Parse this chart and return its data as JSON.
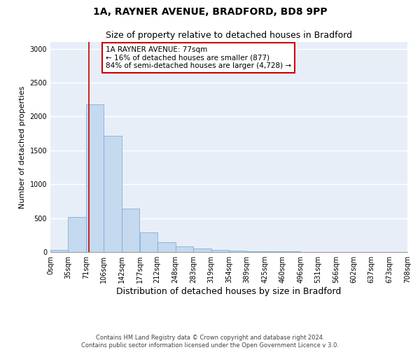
{
  "title_line1": "1A, RAYNER AVENUE, BRADFORD, BD8 9PP",
  "title_line2": "Size of property relative to detached houses in Bradford",
  "xlabel": "Distribution of detached houses by size in Bradford",
  "ylabel": "Number of detached properties",
  "bin_edges": [
    0,
    35,
    71,
    106,
    142,
    177,
    212,
    248,
    283,
    319,
    354,
    389,
    425,
    460,
    496,
    531,
    566,
    602,
    637,
    673,
    708
  ],
  "counts": [
    30,
    520,
    2180,
    1720,
    640,
    290,
    145,
    85,
    55,
    35,
    20,
    15,
    10,
    10,
    5,
    3,
    2,
    2,
    1,
    1
  ],
  "bar_color": "#c5d9ef",
  "bar_edgecolor": "#6fa8d4",
  "property_size": 77,
  "red_line_color": "#cc0000",
  "annotation_text": "1A RAYNER AVENUE: 77sqm\n← 16% of detached houses are smaller (877)\n84% of semi-detached houses are larger (4,728) →",
  "annotation_box_edgecolor": "#cc0000",
  "ylim": [
    0,
    3100
  ],
  "yticks": [
    0,
    500,
    1000,
    1500,
    2000,
    2500,
    3000
  ],
  "background_color": "#e8eef8",
  "footer_text": "Contains HM Land Registry data © Crown copyright and database right 2024.\nContains public sector information licensed under the Open Government Licence v 3.0.",
  "title_fontsize": 10,
  "subtitle_fontsize": 9,
  "tick_label_fontsize": 7,
  "axis_label_fontsize": 9,
  "ylabel_fontsize": 8
}
